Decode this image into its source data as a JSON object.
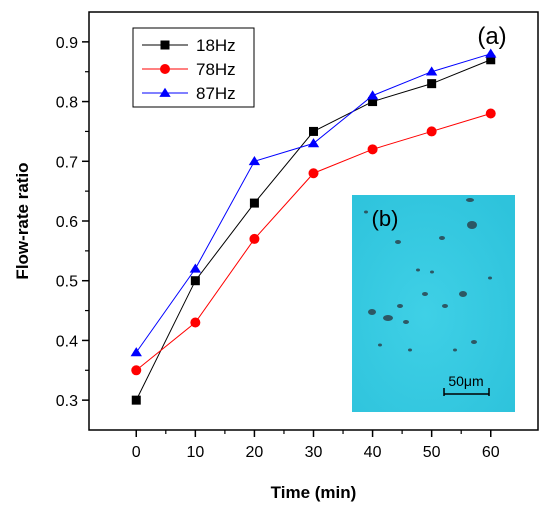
{
  "chart_data": {
    "type": "line",
    "title": "",
    "xlabel": "Time (min)",
    "ylabel": "Flow-rate ratio",
    "xlim": [
      -8,
      68
    ],
    "ylim": [
      0.25,
      0.95
    ],
    "x": [
      0,
      10,
      20,
      30,
      40,
      50,
      60
    ],
    "x_ticks": [
      0,
      10,
      20,
      30,
      40,
      50,
      60
    ],
    "y_ticks": [
      0.3,
      0.4,
      0.5,
      0.6,
      0.7,
      0.8,
      0.9
    ],
    "series": [
      {
        "name": "18Hz",
        "values": [
          0.3,
          0.5,
          0.63,
          0.75,
          0.8,
          0.83,
          0.87
        ],
        "color": "#000000",
        "marker": "square"
      },
      {
        "name": "78Hz",
        "values": [
          0.35,
          0.43,
          0.57,
          0.68,
          0.72,
          0.75,
          0.78
        ],
        "color": "#ff0000",
        "marker": "circle"
      },
      {
        "name": "87Hz",
        "values": [
          0.38,
          0.52,
          0.7,
          0.73,
          0.81,
          0.85,
          0.88
        ],
        "color": "#0000ff",
        "marker": "triangle"
      }
    ],
    "legend_position": "top-left",
    "grid": false,
    "annotations": {
      "panel_a": "(a)",
      "inset_label": "(b)",
      "scale_bar": "50μm"
    },
    "inset": {
      "type": "micrograph",
      "background_color": "#2ec3dc",
      "particle_color": "#2a3b45"
    }
  }
}
